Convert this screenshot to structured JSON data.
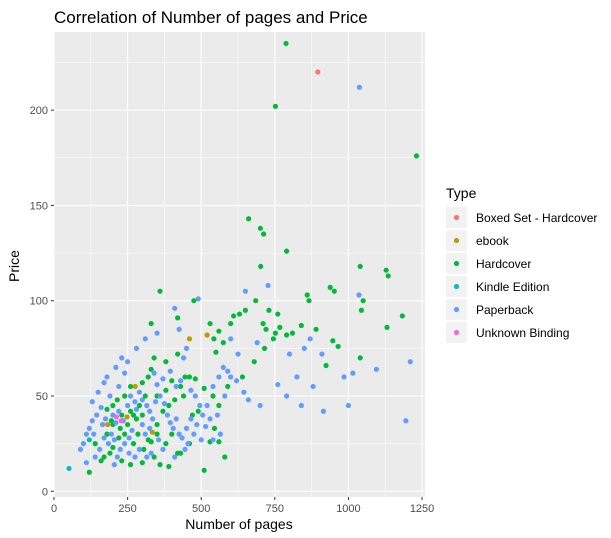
{
  "chart_data": {
    "type": "scatter",
    "title": "Correlation of Number of pages and Price",
    "xlabel": "Number of pages",
    "ylabel": "Price",
    "xlim": [
      0,
      1260
    ],
    "ylim": [
      -3,
      241
    ],
    "x_ticks": [
      0,
      250,
      500,
      750,
      1000,
      1250
    ],
    "y_ticks": [
      0,
      50,
      100,
      150,
      200
    ],
    "x_tick_labels": [
      "0",
      "250",
      "500",
      "750",
      "1000",
      "1250"
    ],
    "y_tick_labels": [
      "0",
      "50",
      "100",
      "150",
      "200"
    ],
    "grid": true,
    "panel_background": "#ebebeb",
    "legend": {
      "title": "Type",
      "position": "right",
      "entries": [
        {
          "name": "Boxed Set - Hardcover",
          "color": "#f8766d"
        },
        {
          "name": "ebook",
          "color": "#b79f00"
        },
        {
          "name": "Hardcover",
          "color": "#00ba38"
        },
        {
          "name": "Kindle Edition",
          "color": "#00bfc4"
        },
        {
          "name": "Paperback",
          "color": "#619cff"
        },
        {
          "name": "Unknown Binding",
          "color": "#f564e3"
        }
      ]
    },
    "series": [
      {
        "name": "Boxed Set - Hardcover",
        "color": "#f8766d",
        "points": [
          [
            896,
            220
          ]
        ]
      },
      {
        "name": "ebook",
        "color": "#b79f00",
        "points": [
          [
            276,
            55
          ],
          [
            182,
            35
          ],
          [
            460,
            80
          ],
          [
            520,
            82
          ],
          [
            334,
            31
          ],
          [
            248,
            39
          ]
        ]
      },
      {
        "name": "Hardcover",
        "color": "#00ba38",
        "points": [
          [
            788,
            235
          ],
          [
            752,
            202
          ],
          [
            1231,
            176
          ],
          [
            661,
            143
          ],
          [
            701,
            138
          ],
          [
            712,
            135
          ],
          [
            790,
            126
          ],
          [
            702,
            118
          ],
          [
            938,
            107
          ],
          [
            1040,
            118
          ],
          [
            1128,
            116
          ],
          [
            1135,
            113
          ],
          [
            952,
            105
          ],
          [
            1050,
            100
          ],
          [
            1131,
            86
          ],
          [
            1183,
            92
          ],
          [
            1044,
            95
          ],
          [
            360,
            105
          ],
          [
            475,
            100
          ],
          [
            530,
            88
          ],
          [
            543,
            80
          ],
          [
            560,
            84
          ],
          [
            600,
            88
          ],
          [
            610,
            92
          ],
          [
            630,
            93
          ],
          [
            650,
            95
          ],
          [
            685,
            100
          ],
          [
            730,
            95
          ],
          [
            810,
            83
          ],
          [
            840,
            87
          ],
          [
            890,
            85
          ],
          [
            752,
            83
          ],
          [
            760,
            93
          ],
          [
            710,
            88
          ],
          [
            790,
            82
          ],
          [
            860,
            103
          ],
          [
            866,
            100
          ],
          [
            965,
            76
          ],
          [
            947,
            79
          ],
          [
            924,
            66
          ],
          [
            1040,
            70
          ],
          [
            720,
            85
          ],
          [
            745,
            80
          ],
          [
            767,
            86
          ],
          [
            330,
            88
          ],
          [
            420,
            91
          ],
          [
            550,
            73
          ],
          [
            575,
            78
          ],
          [
            480,
            59
          ],
          [
            510,
            54
          ],
          [
            540,
            50
          ],
          [
            560,
            45
          ],
          [
            590,
            55
          ],
          [
            640,
            60
          ],
          [
            680,
            68
          ],
          [
            715,
            75
          ],
          [
            420,
            72
          ],
          [
            380,
            68
          ],
          [
            340,
            70
          ],
          [
            320,
            60
          ],
          [
            330,
            64
          ],
          [
            300,
            57
          ],
          [
            310,
            50
          ],
          [
            400,
            58
          ],
          [
            430,
            55
          ],
          [
            445,
            60
          ],
          [
            460,
            60
          ],
          [
            380,
            53
          ],
          [
            350,
            50
          ],
          [
            290,
            45
          ],
          [
            270,
            40
          ],
          [
            250,
            35
          ],
          [
            240,
            30
          ],
          [
            220,
            28
          ],
          [
            200,
            23
          ],
          [
            190,
            20
          ],
          [
            170,
            18
          ],
          [
            160,
            16
          ],
          [
            120,
            10
          ],
          [
            230,
            16
          ],
          [
            300,
            15
          ],
          [
            260,
            14
          ],
          [
            340,
            18
          ],
          [
            360,
            14
          ],
          [
            390,
            13
          ],
          [
            430,
            20
          ],
          [
            460,
            25
          ],
          [
            530,
            26
          ],
          [
            545,
            33
          ],
          [
            560,
            26
          ],
          [
            580,
            18
          ],
          [
            510,
            11
          ],
          [
            305,
            22
          ],
          [
            320,
            27
          ],
          [
            350,
            35
          ],
          [
            280,
            38
          ],
          [
            260,
            42
          ],
          [
            200,
            45
          ],
          [
            180,
            43
          ],
          [
            215,
            48
          ],
          [
            230,
            40
          ],
          [
            240,
            50
          ],
          [
            260,
            55
          ],
          [
            285,
            30
          ],
          [
            330,
            26
          ],
          [
            350,
            30
          ],
          [
            380,
            25
          ],
          [
            400,
            30
          ],
          [
            420,
            20
          ],
          [
            300,
            40
          ],
          [
            140,
            25
          ],
          [
            180,
            30
          ],
          [
            200,
            35
          ],
          [
            370,
            42
          ],
          [
            390,
            45
          ],
          [
            410,
            48
          ],
          [
            440,
            50
          ],
          [
            470,
            40
          ],
          [
            490,
            42
          ],
          [
            195,
            37
          ],
          [
            225,
            33
          ],
          [
            270,
            25
          ]
        ]
      },
      {
        "name": "Kindle Edition",
        "color": "#00bfc4",
        "points": [
          [
            51,
            12
          ],
          [
            120,
            27
          ]
        ]
      },
      {
        "name": "Paperback",
        "color": "#619cff",
        "points": [
          [
            1037,
            212
          ],
          [
            727,
            108
          ],
          [
            1036,
            103
          ],
          [
            490,
            101
          ],
          [
            410,
            96
          ],
          [
            870,
            80
          ],
          [
            910,
            72
          ],
          [
            985,
            60
          ],
          [
            1015,
            62
          ],
          [
            1210,
            68
          ],
          [
            1095,
            64
          ],
          [
            1000,
            45
          ],
          [
            915,
            42
          ],
          [
            840,
            45
          ],
          [
            880,
            55
          ],
          [
            790,
            50
          ],
          [
            760,
            56
          ],
          [
            825,
            60
          ],
          [
            800,
            72
          ],
          [
            850,
            75
          ],
          [
            1195,
            37
          ],
          [
            600,
            60
          ],
          [
            590,
            63
          ],
          [
            620,
            58
          ],
          [
            645,
            52
          ],
          [
            660,
            48
          ],
          [
            700,
            45
          ],
          [
            555,
            40
          ],
          [
            530,
            38
          ],
          [
            520,
            45
          ],
          [
            540,
            55
          ],
          [
            580,
            50
          ],
          [
            560,
            60
          ],
          [
            450,
            75
          ],
          [
            440,
            70
          ],
          [
            425,
            85
          ],
          [
            350,
            83
          ],
          [
            310,
            80
          ],
          [
            280,
            75
          ],
          [
            250,
            68
          ],
          [
            230,
            70
          ],
          [
            240,
            62
          ],
          [
            210,
            65
          ],
          [
            220,
            55
          ],
          [
            180,
            60
          ],
          [
            170,
            57
          ],
          [
            190,
            50
          ],
          [
            150,
            52
          ],
          [
            130,
            47
          ],
          [
            160,
            44
          ],
          [
            145,
            40
          ],
          [
            130,
            37
          ],
          [
            120,
            33
          ],
          [
            110,
            30
          ],
          [
            100,
            25
          ],
          [
            90,
            22
          ],
          [
            200,
            40
          ],
          [
            210,
            36
          ],
          [
            220,
            42
          ],
          [
            250,
            45
          ],
          [
            260,
            50
          ],
          [
            275,
            47
          ],
          [
            290,
            52
          ],
          [
            300,
            48
          ],
          [
            315,
            45
          ],
          [
            325,
            42
          ],
          [
            335,
            38
          ],
          [
            345,
            47
          ],
          [
            360,
            50
          ],
          [
            375,
            46
          ],
          [
            385,
            40
          ],
          [
            395,
            36
          ],
          [
            405,
            33
          ],
          [
            415,
            38
          ],
          [
            425,
            30
          ],
          [
            435,
            28
          ],
          [
            450,
            33
          ],
          [
            465,
            38
          ],
          [
            475,
            30
          ],
          [
            485,
            35
          ],
          [
            500,
            27
          ],
          [
            495,
            45
          ],
          [
            505,
            40
          ],
          [
            515,
            34
          ],
          [
            540,
            27
          ],
          [
            565,
            30
          ],
          [
            455,
            25
          ],
          [
            445,
            22
          ],
          [
            410,
            18
          ],
          [
            370,
            22
          ],
          [
            355,
            27
          ],
          [
            330,
            20
          ],
          [
            315,
            18
          ],
          [
            290,
            22
          ],
          [
            275,
            18
          ],
          [
            255,
            20
          ],
          [
            240,
            25
          ],
          [
            225,
            22
          ],
          [
            205,
            27
          ],
          [
            195,
            30
          ],
          [
            185,
            25
          ],
          [
            170,
            28
          ],
          [
            155,
            22
          ],
          [
            135,
            30
          ],
          [
            110,
            15
          ],
          [
            140,
            18
          ],
          [
            165,
            35
          ],
          [
            175,
            38
          ],
          [
            300,
            35
          ],
          [
            310,
            30
          ],
          [
            325,
            33
          ],
          [
            265,
            32
          ],
          [
            255,
            28
          ],
          [
            280,
            43
          ],
          [
            235,
            37
          ],
          [
            215,
            18
          ],
          [
            205,
            14
          ],
          [
            350,
            56
          ],
          [
            340,
            62
          ],
          [
            370,
            59
          ],
          [
            395,
            63
          ],
          [
            415,
            55
          ],
          [
            430,
            58
          ],
          [
            465,
            53
          ],
          [
            480,
            50
          ],
          [
            650,
            105
          ],
          [
            600,
            80
          ],
          [
            575,
            65
          ],
          [
            625,
            72
          ],
          [
            690,
            78
          ]
        ]
      },
      {
        "name": "Unknown Binding",
        "color": "#f564e3",
        "points": [
          [
            212,
            39
          ],
          [
            228,
            37
          ]
        ]
      }
    ]
  }
}
